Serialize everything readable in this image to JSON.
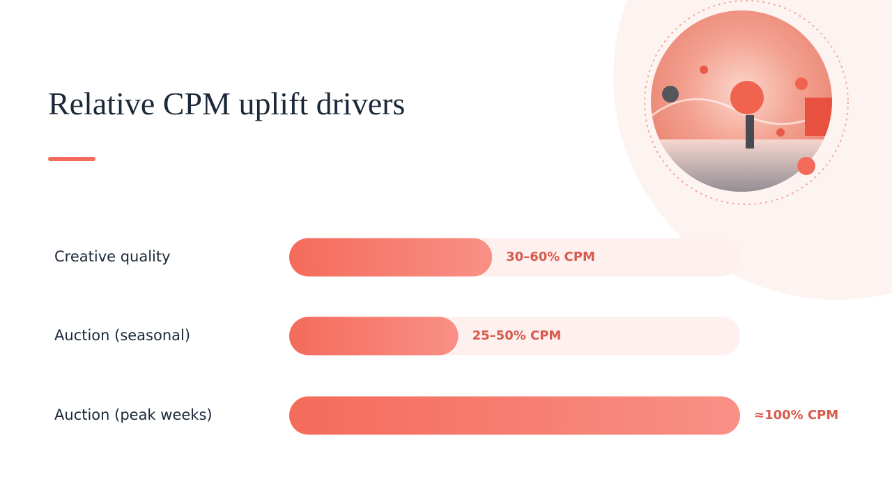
{
  "chart_data": {
    "type": "bar",
    "orientation": "horizontal",
    "title": "Relative CPM uplift drivers",
    "categories": [
      "Creative quality",
      "Auction (seasonal)",
      "Auction (peak weeks)"
    ],
    "values": [
      45,
      37.5,
      100
    ],
    "value_labels": [
      "30–60% CPM",
      "25–50% CPM",
      "≈100% CPM"
    ],
    "color": "#f46b5b",
    "xlim": [
      0,
      100
    ]
  }
}
